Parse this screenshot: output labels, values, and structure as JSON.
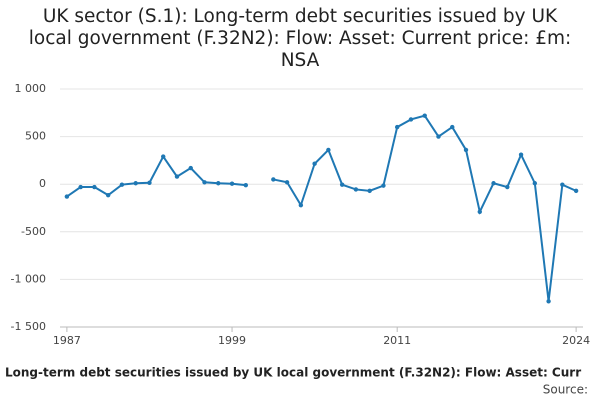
{
  "chart_data": {
    "type": "line",
    "title": "UK sector (S.1): Long-term debt securities issued by UK local government (F.32N2): Flow: Asset: Current price: £m: NSA",
    "caption": "Long-term debt securities issued by UK local government (F.32N2): Flow: Asset: Curr",
    "source": "Source:",
    "x": [
      1987,
      1988,
      1989,
      1990,
      1991,
      1992,
      1993,
      1994,
      1995,
      1996,
      1997,
      1998,
      1999,
      2000,
      2001,
      2002,
      2003,
      2004,
      2005,
      2006,
      2007,
      2008,
      2009,
      2010,
      2011,
      2012,
      2013,
      2014,
      2015,
      2016,
      2017,
      2018,
      2019,
      2020,
      2021,
      2022,
      2023,
      2024
    ],
    "series": [
      {
        "name": "Long-term debt securities issued by UK local government (F.32N2)",
        "color": "#1f78b4",
        "values": [
          -130,
          -30,
          -30,
          -115,
          -5,
          10,
          15,
          290,
          80,
          170,
          20,
          10,
          5,
          -10,
          null,
          50,
          20,
          -220,
          215,
          360,
          -5,
          -55,
          -70,
          -15,
          600,
          680,
          720,
          500,
          600,
          360,
          -290,
          10,
          -30,
          310,
          10,
          -1230,
          -5,
          -70
        ]
      }
    ],
    "xlim": [
      1986.5,
      2024.5
    ],
    "xticks": [
      1987,
      1999,
      2011,
      2024
    ],
    "ylim": [
      -1500,
      1000
    ],
    "yticks": [
      {
        "value": -1500,
        "label": "-1 500"
      },
      {
        "value": -1000,
        "label": "-1 000"
      },
      -500,
      0,
      500,
      {
        "value": 1000,
        "label": "1 000"
      }
    ],
    "grid": true
  }
}
